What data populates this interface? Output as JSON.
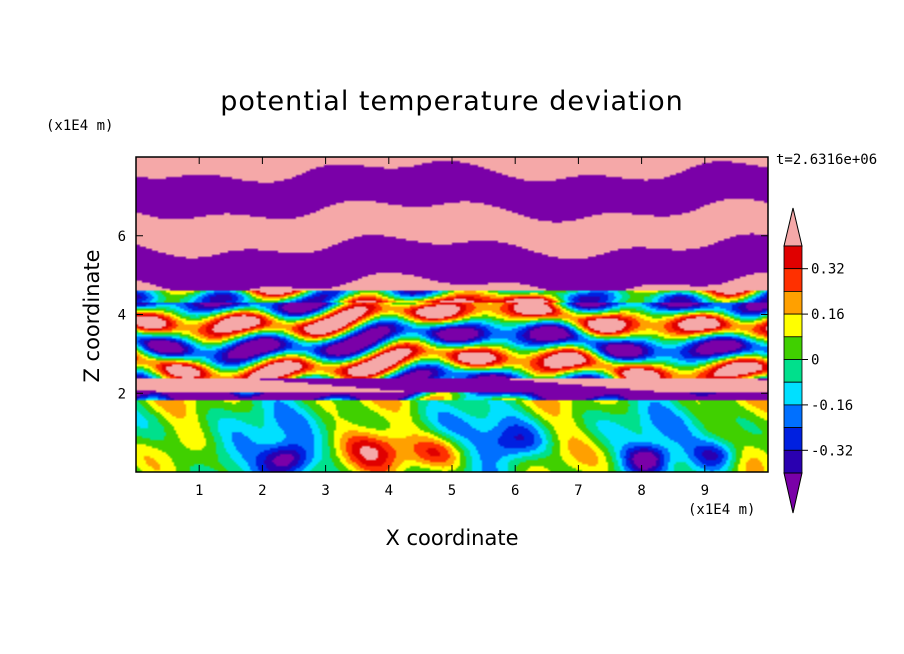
{
  "chart_data": {
    "type": "heatmap",
    "title": "potential temperature deviation",
    "xlabel": "X coordinate",
    "ylabel": "Z coordinate",
    "x_unit": "(x1E4 m)",
    "y_unit": "(x1E4 m)",
    "time_label": "t=2.6316e+06",
    "xlim": [
      0,
      10
    ],
    "ylim": [
      0,
      8
    ],
    "x_ticks": [
      "1",
      "2",
      "3",
      "4",
      "5",
      "6",
      "7",
      "8",
      "9"
    ],
    "y_ticks": [
      "2",
      "4",
      "6"
    ],
    "colorbar": {
      "labels": [
        "0.32",
        "0.16",
        "0",
        "-0.16",
        "-0.32"
      ],
      "label_values": [
        0.32,
        0.16,
        0,
        -0.16,
        -0.32
      ],
      "levels": [
        -0.4,
        -0.32,
        -0.24,
        -0.16,
        -0.08,
        0,
        0.08,
        0.16,
        0.24,
        0.32,
        0.4
      ],
      "colors": [
        "#7a00a8",
        "#2a00b0",
        "#0020e0",
        "#0070ff",
        "#00e0ff",
        "#00e08c",
        "#40d000",
        "#ffff00",
        "#ffa000",
        "#ff3000",
        "#e00000",
        "#f5a8a8"
      ],
      "extend": "both"
    }
  }
}
